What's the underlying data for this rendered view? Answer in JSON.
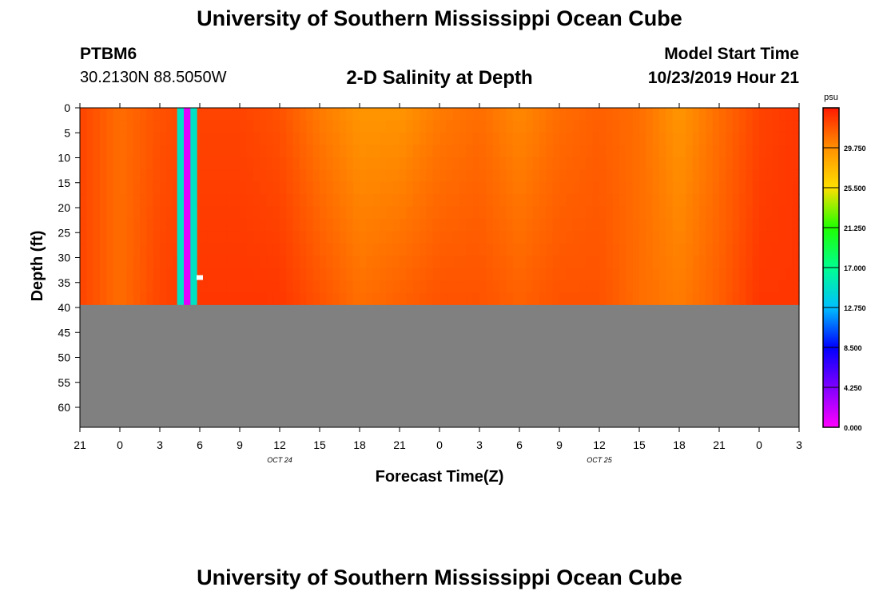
{
  "header": {
    "title_top": "University of Southern Mississippi Ocean Cube",
    "station_id": "PTBM6",
    "coordinates": "30.2130N 88.5050W",
    "plot_title": "2-D Salinity at Depth",
    "model_start_label": "Model Start Time",
    "model_start_value": "10/23/2019 Hour 21",
    "title_bottom": "University of Southern Mississippi Ocean Cube"
  },
  "chart_data": {
    "type": "heatmap",
    "title": "2-D Salinity at Depth",
    "xlabel": "Forecast Time(Z)",
    "ylabel": "Depth (ft)",
    "xlim": [
      0,
      54
    ],
    "ylim": [
      0,
      64
    ],
    "x_ticks": [
      {
        "hour": 0,
        "label": "21"
      },
      {
        "hour": 3,
        "label": "0"
      },
      {
        "hour": 6,
        "label": "3"
      },
      {
        "hour": 9,
        "label": "6"
      },
      {
        "hour": 12,
        "label": "9"
      },
      {
        "hour": 15,
        "label": "12"
      },
      {
        "hour": 18,
        "label": "15"
      },
      {
        "hour": 21,
        "label": "18"
      },
      {
        "hour": 24,
        "label": "21"
      },
      {
        "hour": 27,
        "label": "0"
      },
      {
        "hour": 30,
        "label": "3"
      },
      {
        "hour": 33,
        "label": "6"
      },
      {
        "hour": 36,
        "label": "9"
      },
      {
        "hour": 39,
        "label": "12"
      },
      {
        "hour": 42,
        "label": "15"
      },
      {
        "hour": 45,
        "label": "18"
      },
      {
        "hour": 48,
        "label": "21"
      },
      {
        "hour": 51,
        "label": "0"
      },
      {
        "hour": 54,
        "label": "3"
      }
    ],
    "date_labels": [
      {
        "hour": 15,
        "label": "OCT 24"
      },
      {
        "hour": 39,
        "label": "OCT 25"
      }
    ],
    "y_ticks": [
      0,
      5,
      10,
      15,
      20,
      25,
      30,
      35,
      40,
      45,
      50,
      55,
      60
    ],
    "water_bottom_depth": 39.5,
    "colorbar": {
      "unit": "psu",
      "min": 0.0,
      "max": 34.0,
      "tick_values": [
        0.0,
        4.25,
        8.5,
        12.75,
        17.0,
        21.25,
        25.5,
        29.75
      ],
      "tick_labels": [
        "0.000",
        "4.250",
        "8.500",
        "12.750",
        "17.000",
        "21.250",
        "25.500",
        "29.750"
      ]
    },
    "hours": [
      0,
      3,
      6,
      9,
      12,
      15,
      18,
      21,
      24,
      27,
      30,
      33,
      36,
      39,
      42,
      45,
      48,
      51,
      54
    ],
    "surface_salinity": [
      32.5,
      31.0,
      32.0,
      32.5,
      32.5,
      32.0,
      30.5,
      29.5,
      29.5,
      30.5,
      31.0,
      30.0,
      31.0,
      31.5,
      31.0,
      29.5,
      31.0,
      32.5,
      33.0
    ],
    "bottom_salinity": [
      32.5,
      31.0,
      32.5,
      33.0,
      33.0,
      33.0,
      32.0,
      31.0,
      31.5,
      32.0,
      32.0,
      31.5,
      32.0,
      32.0,
      31.0,
      30.5,
      31.5,
      33.0,
      33.0
    ],
    "anomaly_columns": [
      {
        "hour_start": 7.3,
        "hour_end": 7.8,
        "salinity": 15.0
      },
      {
        "hour_start": 7.8,
        "hour_end": 8.3,
        "salinity": 1.0
      },
      {
        "hour_start": 8.3,
        "hour_end": 8.8,
        "salinity": 15.0
      }
    ],
    "missing_marker": {
      "hour": 9.0,
      "depth": 34
    }
  }
}
